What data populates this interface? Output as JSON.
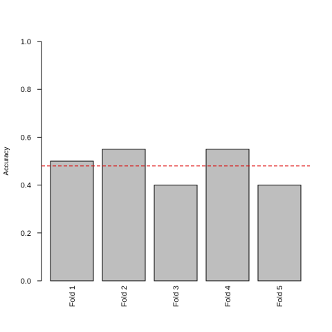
{
  "chart_data": {
    "type": "bar",
    "categories": [
      "Fold 1",
      "Fold 2",
      "Fold 3",
      "Fold 4",
      "Fold 5"
    ],
    "values": [
      0.5,
      0.55,
      0.4,
      0.55,
      0.4
    ],
    "title": "",
    "xlabel": "",
    "ylabel": "Accuracy",
    "ylim": [
      0,
      1
    ],
    "yticks": [
      "0.0",
      "0.2",
      "0.4",
      "0.6",
      "0.8",
      "1.0"
    ],
    "reference_line": {
      "value": 0.48,
      "style": "dashed",
      "color": "#dd0000"
    },
    "bar_fill": "#bebebe",
    "bar_stroke": "#000000",
    "grid": false,
    "legend": "none"
  }
}
